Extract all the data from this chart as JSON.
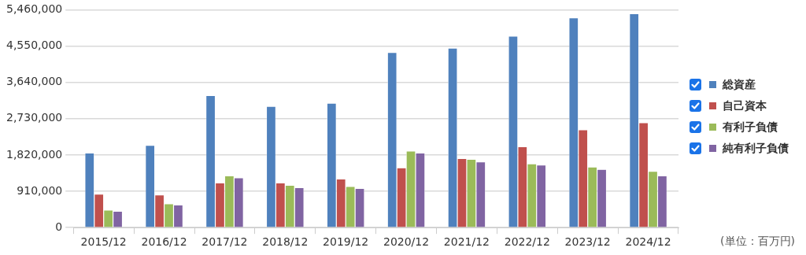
{
  "chart_data": {
    "type": "bar",
    "categories": [
      "2015/12",
      "2016/12",
      "2017/12",
      "2018/12",
      "2019/12",
      "2020/12",
      "2021/12",
      "2022/12",
      "2023/12",
      "2024/12"
    ],
    "series": [
      {
        "name": "総資産",
        "color": "#4f81bd",
        "values": [
          1870000,
          2060000,
          3310000,
          3040000,
          3120000,
          4390000,
          4500000,
          4800000,
          5260000,
          5360000
        ]
      },
      {
        "name": "自己資本",
        "color": "#c0504d",
        "values": [
          840000,
          820000,
          1120000,
          1120000,
          1220000,
          1500000,
          1730000,
          2030000,
          2450000,
          2630000
        ]
      },
      {
        "name": "有利子負債",
        "color": "#9bbb59",
        "values": [
          440000,
          600000,
          1300000,
          1060000,
          1030000,
          1920000,
          1710000,
          1600000,
          1520000,
          1410000
        ]
      },
      {
        "name": "純有利子負債",
        "color": "#8064a2",
        "values": [
          410000,
          570000,
          1250000,
          1000000,
          980000,
          1870000,
          1650000,
          1570000,
          1460000,
          1300000
        ]
      }
    ],
    "ylim": [
      0,
      5460000
    ],
    "yticks": [
      {
        "value": 0,
        "label": "0"
      },
      {
        "value": 910000,
        "label": "910,000"
      },
      {
        "value": 1820000,
        "label": "1,820,000"
      },
      {
        "value": 2730000,
        "label": "2,730,000"
      },
      {
        "value": 3640000,
        "label": "3,640,000"
      },
      {
        "value": 4550000,
        "label": "4,550,000"
      },
      {
        "value": 5460000,
        "label": "5,460,000"
      }
    ],
    "grid": "y",
    "legend": "right",
    "annotations": [
      "(単位：百万円)"
    ]
  }
}
